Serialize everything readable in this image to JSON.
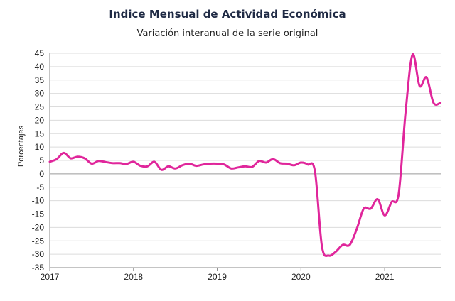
{
  "chart_data": {
    "type": "line",
    "title": "Indice Mensual de  Actividad Económica",
    "subtitle": "Variación interanual de la serie original",
    "ylabel": "Porcentajes",
    "xlabel": "",
    "ylim": [
      -35,
      45
    ],
    "xlim": [
      2017,
      2021.67
    ],
    "yticks": [
      45,
      40,
      35,
      30,
      25,
      20,
      15,
      10,
      5,
      0,
      -5,
      -10,
      -15,
      -20,
      -25,
      -30,
      -35
    ],
    "ytick_labels": [
      "45",
      "40",
      "35",
      "30",
      "25",
      "20",
      "15",
      "10",
      "5",
      "0",
      "-5",
      "-10",
      "-15",
      "-20",
      "-25",
      "-30",
      "-35"
    ],
    "xticks": [
      2017,
      2018,
      2019,
      2020,
      2021
    ],
    "xtick_labels": [
      "2017",
      "2018",
      "2019",
      "2020",
      "2021"
    ],
    "grid": "horizontal",
    "legend": "none",
    "series": [
      {
        "color": "#e0269b",
        "x": [
          2017.0,
          2017.083,
          2017.167,
          2017.25,
          2017.333,
          2017.417,
          2017.5,
          2017.583,
          2017.667,
          2017.75,
          2017.833,
          2017.917,
          2018.0,
          2018.083,
          2018.167,
          2018.25,
          2018.333,
          2018.417,
          2018.5,
          2018.583,
          2018.667,
          2018.75,
          2018.833,
          2018.917,
          2019.0,
          2019.083,
          2019.167,
          2019.25,
          2019.333,
          2019.417,
          2019.5,
          2019.583,
          2019.667,
          2019.75,
          2019.833,
          2019.917,
          2020.0,
          2020.083,
          2020.167,
          2020.25,
          2020.333,
          2020.417,
          2020.5,
          2020.583,
          2020.667,
          2020.75,
          2020.833,
          2020.917,
          2021.0,
          2021.083,
          2021.167,
          2021.25,
          2021.333,
          2021.417,
          2021.5,
          2021.583,
          2021.667
        ],
        "y": [
          4.5,
          5.5,
          7.8,
          5.8,
          6.4,
          5.8,
          3.8,
          4.8,
          4.4,
          4.0,
          4.0,
          3.7,
          4.5,
          3.0,
          2.8,
          4.5,
          1.5,
          2.8,
          2.0,
          3.2,
          3.8,
          3.0,
          3.5,
          3.8,
          3.8,
          3.5,
          2.0,
          2.4,
          2.8,
          2.6,
          4.8,
          4.2,
          5.5,
          4.0,
          3.8,
          3.2,
          4.2,
          3.5,
          1.0,
          -27.0,
          -30.5,
          -29.0,
          -26.5,
          -26.5,
          -20.5,
          -13.0,
          -13.0,
          -9.5,
          -15.5,
          -10.5,
          -7.5,
          23.0,
          44.5,
          32.8,
          36.0,
          26.5,
          26.5
        ]
      }
    ]
  }
}
